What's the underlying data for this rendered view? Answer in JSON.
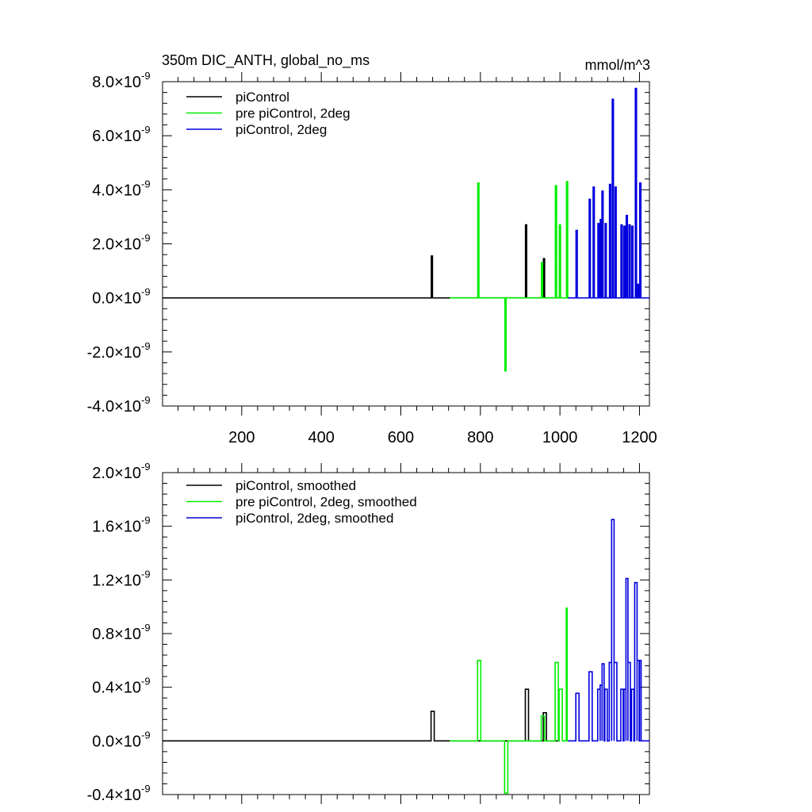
{
  "page": {
    "title": "350m DIC_ANTH, global_no_ms",
    "units": "mmol/m^3"
  },
  "colors": {
    "piControl": "#000000",
    "pre_piControl_2deg": "#00ee00",
    "piControl_2deg": "#0000dd"
  },
  "chart_data": [
    {
      "type": "line",
      "title": "350m DIC_ANTH, global_no_ms",
      "units_label": "mmol/m^3",
      "xlim": [
        1,
        1225
      ],
      "ylim": [
        -4e-09,
        8e-09
      ],
      "grid": false,
      "legend_position": "top-left",
      "x_ticks": [
        200,
        400,
        600,
        800,
        1000,
        1200
      ],
      "x_tick_labels": [
        "200",
        "400",
        "600",
        "800",
        "1000",
        "1200"
      ],
      "show_x_tick_labels": true,
      "y_ticks": [
        -4e-09,
        -2e-09,
        0.0,
        2e-09,
        4e-09,
        6e-09,
        8e-09
      ],
      "y_tick_labels": [
        {
          "mantissa": "-4.0",
          "times": "×10",
          "exponent": "-9"
        },
        {
          "mantissa": "-2.0",
          "times": "×10",
          "exponent": "-9"
        },
        {
          "mantissa": "0.0",
          "times": "×10",
          "exponent": "-9"
        },
        {
          "mantissa": "2.0",
          "times": "×10",
          "exponent": "-9"
        },
        {
          "mantissa": "4.0",
          "times": "×10",
          "exponent": "-9"
        },
        {
          "mantissa": "6.0",
          "times": "×10",
          "exponent": "-9"
        },
        {
          "mantissa": "8.0",
          "times": "×10",
          "exponent": "-9"
        }
      ],
      "series": [
        {
          "name": "piControl",
          "color": "#000000",
          "x_range": [
            1,
            1000
          ],
          "spikes": [
            [
              678,
              1.55e-09
            ],
            [
              915,
              2.7e-09
            ],
            [
              960,
              1.45e-09
            ]
          ]
        },
        {
          "name": "pre piControl, 2deg",
          "color": "#00ee00",
          "x_range": [
            723,
            1025
          ],
          "spikes": [
            [
              795,
              4.25e-09
            ],
            [
              863,
              -2.7e-09
            ],
            [
              955,
              1.3e-09
            ],
            [
              990,
              4.15e-09
            ],
            [
              1000,
              2.7e-09
            ],
            [
              1018,
              4.3e-09
            ]
          ]
        },
        {
          "name": "piControl, 2deg",
          "color": "#0000dd",
          "x_range": [
            1020,
            1225
          ],
          "spikes": [
            [
              1042,
              2.5e-09
            ],
            [
              1075,
              3.65e-09
            ],
            [
              1085,
              4.1e-09
            ],
            [
              1097,
              2.75e-09
            ],
            [
              1103,
              2.9e-09
            ],
            [
              1107,
              3.95e-09
            ],
            [
              1115,
              2.75e-09
            ],
            [
              1126,
              4.2e-09
            ],
            [
              1133,
              7.35e-09
            ],
            [
              1140,
              4.1e-09
            ],
            [
              1155,
              2.7e-09
            ],
            [
              1162,
              2.65e-09
            ],
            [
              1168,
              3.05e-09
            ],
            [
              1175,
              2.7e-09
            ],
            [
              1182,
              2.65e-09
            ],
            [
              1191,
              7.75e-09
            ],
            [
              1196,
              5e-10
            ],
            [
              1202,
              4.25e-09
            ]
          ]
        }
      ]
    },
    {
      "type": "line",
      "title": "",
      "xlim": [
        1,
        1225
      ],
      "ylim": [
        -4e-10,
        2e-09
      ],
      "grid": false,
      "legend_position": "top-left",
      "x_ticks": [
        200,
        400,
        600,
        800,
        1000,
        1200
      ],
      "x_tick_labels": [],
      "show_x_tick_labels": false,
      "y_ticks": [
        -4e-10,
        0.0,
        4e-10,
        8e-10,
        1.2e-09,
        1.6e-09,
        2e-09
      ],
      "y_tick_labels": [
        {
          "mantissa": "-0.4",
          "times": "×10",
          "exponent": "-9"
        },
        {
          "mantissa": "0.0",
          "times": "×10",
          "exponent": "-9"
        },
        {
          "mantissa": "0.4",
          "times": "×10",
          "exponent": "-9"
        },
        {
          "mantissa": "0.8",
          "times": "×10",
          "exponent": "-9"
        },
        {
          "mantissa": "1.2",
          "times": "×10",
          "exponent": "-9"
        },
        {
          "mantissa": "1.6",
          "times": "×10",
          "exponent": "-9"
        },
        {
          "mantissa": "2.0",
          "times": "×10",
          "exponent": "-9"
        }
      ],
      "series": [
        {
          "name": "piControl, smoothed",
          "color": "#000000",
          "x_range": [
            1,
            1000
          ],
          "blocks": [
            [
              676,
              684,
              2.2e-10
            ],
            [
              913,
              921,
              3.85e-10
            ],
            [
              958,
              966,
              2.1e-10
            ]
          ]
        },
        {
          "name": "pre piControl, 2deg, smoothed",
          "color": "#00ee00",
          "x_range": [
            723,
            1025
          ],
          "blocks": [
            [
              793,
              801,
              6e-10
            ],
            [
              861,
              869,
              -3.9e-10
            ],
            [
              953,
              961,
              1.85e-10
            ],
            [
              988,
              996,
              5.85e-10
            ],
            [
              998,
              1006,
              3.85e-10
            ],
            [
              1016,
              1018,
              9.9e-10
            ]
          ]
        },
        {
          "name": "piControl, 2deg, smoothed",
          "color": "#0000dd",
          "x_range": [
            1020,
            1225
          ],
          "blocks": [
            [
              1040,
              1048,
              3.55e-10
            ],
            [
              1073,
              1081,
              5.15e-10
            ],
            [
              1095,
              1101,
              3.85e-10
            ],
            [
              1101,
              1106,
              4.15e-10
            ],
            [
              1106,
              1111,
              5.75e-10
            ],
            [
              1113,
              1119,
              3.85e-10
            ],
            [
              1124,
              1130,
              5.85e-10
            ],
            [
              1130,
              1136,
              1.65e-09
            ],
            [
              1136,
              1143,
              5.85e-10
            ],
            [
              1153,
              1159,
              3.85e-10
            ],
            [
              1161,
              1166,
              3.85e-10
            ],
            [
              1166,
              1171,
              1.21e-09
            ],
            [
              1171,
              1177,
              5.85e-10
            ],
            [
              1180,
              1186,
              3.85e-10
            ],
            [
              1188,
              1194,
              1.18e-09
            ],
            [
              1194,
              1199,
              6e-10
            ],
            [
              1200,
              1204,
              6e-10
            ]
          ]
        }
      ]
    }
  ]
}
